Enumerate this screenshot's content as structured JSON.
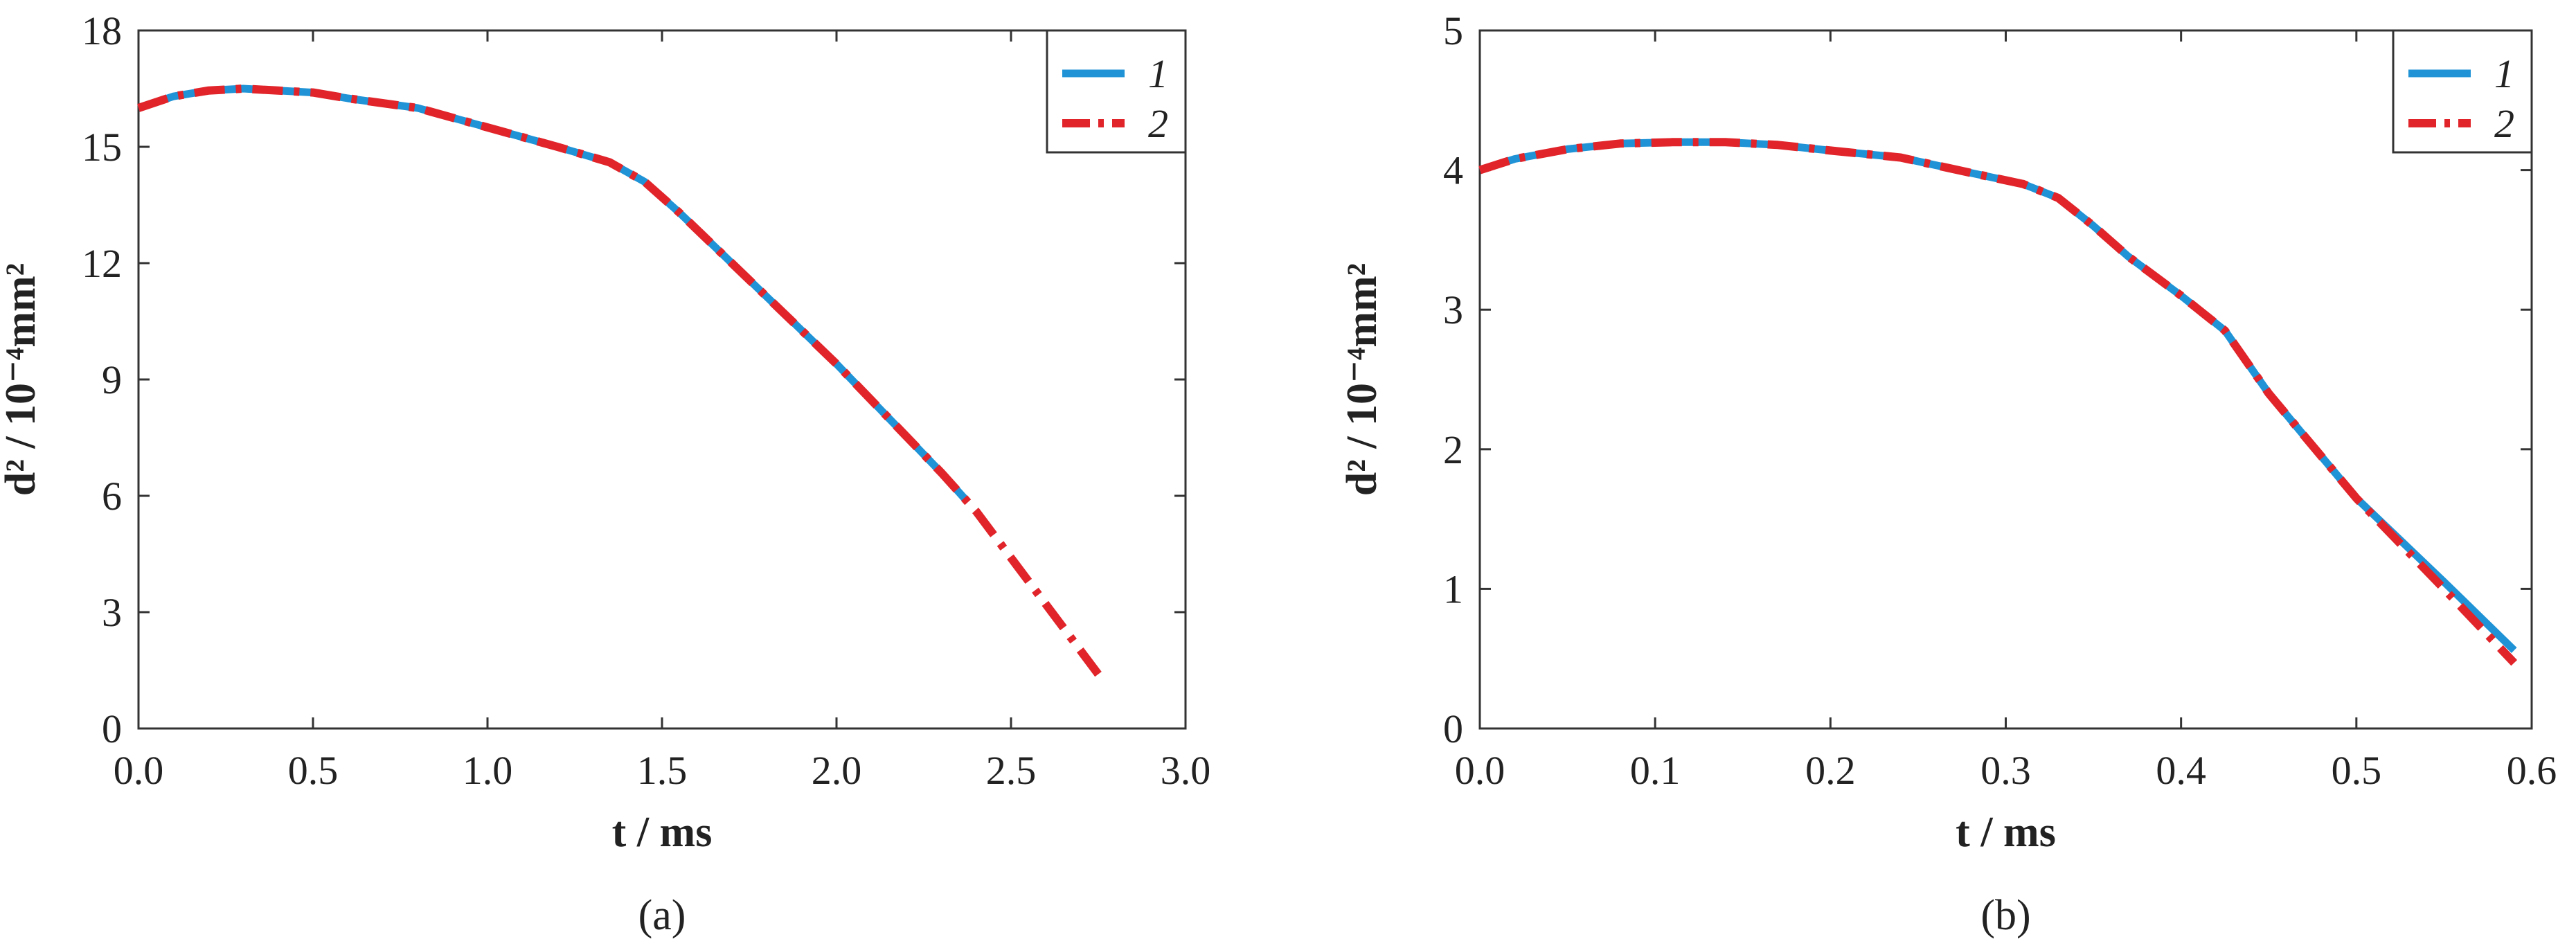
{
  "colors": {
    "series1": "#1f93d6",
    "series2": "#e0242a",
    "axis": "#333333"
  },
  "chart_data": [
    {
      "type": "line",
      "caption": "(a)",
      "xlabel": "t / ms",
      "ylabel": "d² / 10⁻⁴mm²",
      "xlim": [
        0,
        3.0
      ],
      "ylim": [
        0,
        18
      ],
      "xticks": [
        "0.0",
        "0.5",
        "1.0",
        "1.5",
        "2.0",
        "2.5",
        "3.0"
      ],
      "yticks": [
        "0",
        "3",
        "6",
        "9",
        "12",
        "15",
        "18"
      ],
      "legend_position": "top-right",
      "series": [
        {
          "name": "1",
          "style": "solid",
          "x": [
            0,
            0.1,
            0.2,
            0.3,
            0.4,
            0.5,
            0.6,
            0.8,
            1.0,
            1.2,
            1.35,
            1.45,
            1.55,
            1.7,
            1.85,
            2.0,
            2.15,
            2.3,
            2.37
          ],
          "y": [
            16.0,
            16.3,
            16.45,
            16.5,
            16.45,
            16.4,
            16.25,
            16.0,
            15.5,
            15.0,
            14.6,
            14.1,
            13.3,
            12.0,
            10.7,
            9.4,
            8.0,
            6.6,
            5.9
          ]
        },
        {
          "name": "2",
          "style": "dash-dot",
          "x": [
            0,
            0.1,
            0.2,
            0.3,
            0.4,
            0.5,
            0.6,
            0.8,
            1.0,
            1.2,
            1.35,
            1.45,
            1.55,
            1.7,
            1.85,
            2.0,
            2.15,
            2.3,
            2.4,
            2.5,
            2.6,
            2.75
          ],
          "y": [
            16.0,
            16.3,
            16.45,
            16.5,
            16.45,
            16.4,
            16.25,
            16.0,
            15.5,
            15.0,
            14.6,
            14.1,
            13.3,
            12.0,
            10.7,
            9.4,
            8.0,
            6.6,
            5.6,
            4.4,
            3.2,
            1.4
          ]
        }
      ]
    },
    {
      "type": "line",
      "caption": "(b)",
      "xlabel": "t / ms",
      "ylabel": "d² / 10⁻⁴mm²",
      "xlim": [
        0,
        0.6
      ],
      "ylim": [
        0,
        5
      ],
      "xticks": [
        "0.0",
        "0.1",
        "0.2",
        "0.3",
        "0.4",
        "0.5",
        "0.6"
      ],
      "yticks": [
        "0",
        "1",
        "2",
        "3",
        "4",
        "5"
      ],
      "legend_position": "top-right",
      "series": [
        {
          "name": "1",
          "style": "solid",
          "x": [
            0,
            0.02,
            0.05,
            0.08,
            0.11,
            0.14,
            0.17,
            0.2,
            0.24,
            0.28,
            0.31,
            0.33,
            0.35,
            0.37,
            0.4,
            0.425,
            0.45,
            0.5,
            0.55,
            0.59
          ],
          "y": [
            4.0,
            4.08,
            4.15,
            4.19,
            4.2,
            4.2,
            4.18,
            4.14,
            4.09,
            3.98,
            3.9,
            3.8,
            3.6,
            3.38,
            3.1,
            2.85,
            2.4,
            1.65,
            1.05,
            0.56
          ]
        },
        {
          "name": "2",
          "style": "dash-dot",
          "x": [
            0,
            0.02,
            0.05,
            0.08,
            0.11,
            0.14,
            0.17,
            0.2,
            0.24,
            0.28,
            0.31,
            0.33,
            0.35,
            0.37,
            0.4,
            0.425,
            0.45,
            0.5,
            0.55,
            0.59
          ],
          "y": [
            4.0,
            4.08,
            4.15,
            4.19,
            4.2,
            4.2,
            4.18,
            4.14,
            4.09,
            3.98,
            3.9,
            3.8,
            3.6,
            3.38,
            3.1,
            2.85,
            2.4,
            1.65,
            1.0,
            0.47
          ]
        }
      ]
    }
  ]
}
